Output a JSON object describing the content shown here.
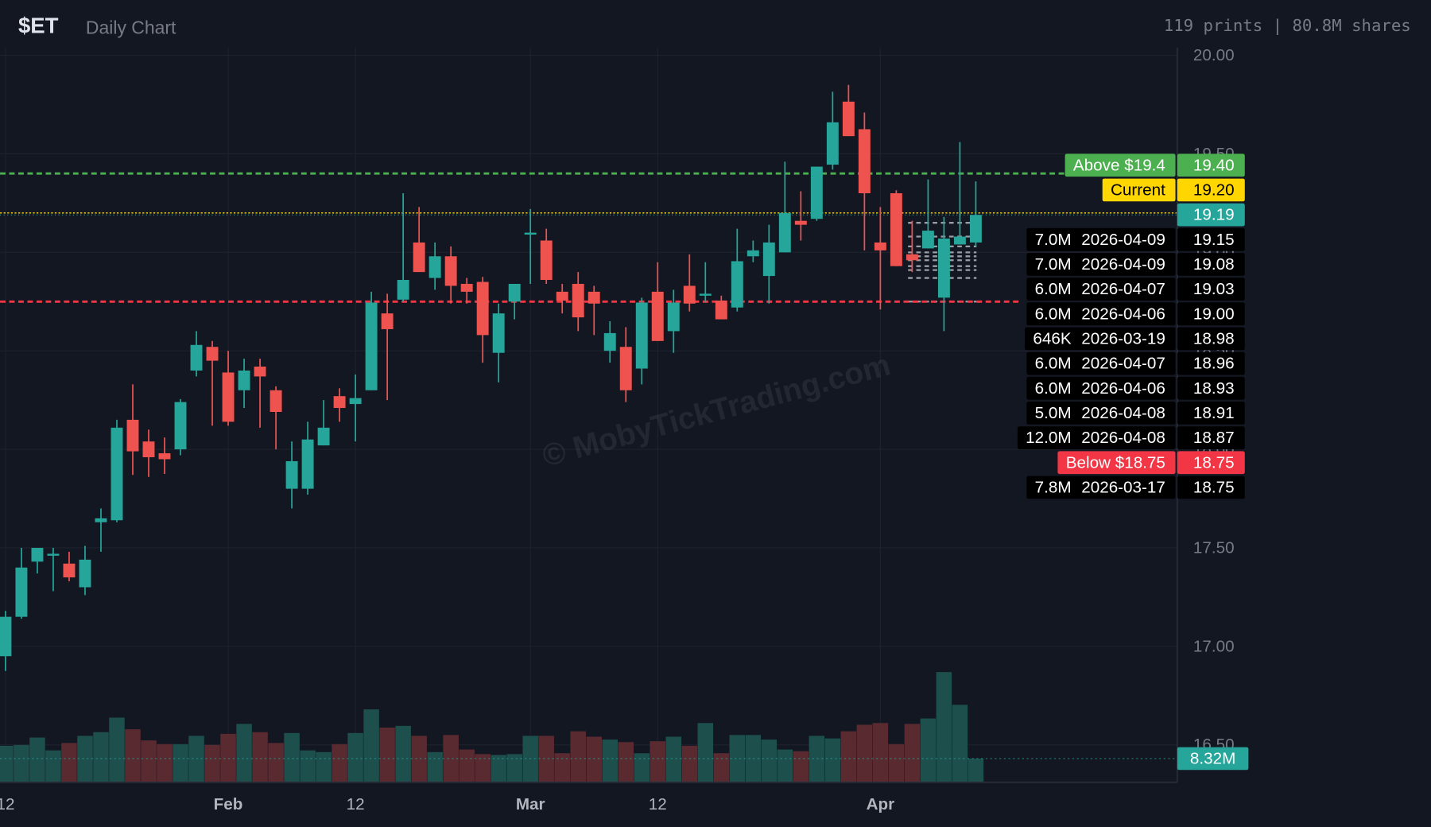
{
  "header": {
    "symbol": "$ET",
    "subtitle": "Daily Chart",
    "stats": "119 prints | 80.8M shares"
  },
  "chart_data": {
    "type": "candlestick",
    "watermark": "© MobyTickTrading.com",
    "categories": [
      "12",
      null,
      null,
      null,
      null,
      null,
      null,
      null,
      null,
      null,
      null,
      null,
      null,
      null,
      "Feb",
      null,
      null,
      null,
      null,
      null,
      null,
      null,
      "12",
      null,
      null,
      null,
      null,
      null,
      null,
      null,
      null,
      null,
      null,
      "Mar",
      null,
      null,
      null,
      null,
      null,
      null,
      null,
      "12",
      null,
      null,
      null,
      null,
      null,
      null,
      null,
      null,
      null,
      null,
      null,
      null,
      null,
      "Apr",
      null,
      null,
      null,
      null,
      null,
      null
    ],
    "open": [
      16.95,
      17.15,
      17.43,
      17.46,
      17.42,
      17.3,
      17.63,
      17.64,
      18.15,
      18.04,
      17.98,
      18.0,
      18.4,
      18.52,
      18.39,
      18.3,
      18.42,
      18.3,
      17.8,
      17.8,
      18.02,
      18.27,
      18.23,
      18.3,
      18.69,
      18.76,
      19.05,
      18.87,
      18.98,
      18.84,
      18.85,
      18.49,
      18.75,
      19.09,
      19.06,
      18.8,
      18.84,
      18.8,
      18.5,
      18.52,
      18.41,
      18.8,
      18.6,
      18.83,
      18.78,
      18.755,
      18.72,
      18.98,
      18.88,
      19.0,
      19.16,
      19.17,
      19.445,
      19.765,
      19.625,
      19.05,
      19.3,
      18.99,
      19.02,
      18.77,
      19.04,
      19.05
    ],
    "high": [
      17.18,
      17.5,
      17.5,
      17.5,
      17.48,
      17.51,
      17.7,
      18.15,
      18.33,
      18.1,
      18.06,
      18.255,
      18.6,
      18.55,
      18.5,
      18.46,
      18.46,
      18.32,
      18.04,
      18.14,
      18.25,
      18.31,
      18.38,
      18.8,
      18.79,
      19.3,
      19.23,
      19.05,
      19.03,
      18.87,
      18.875,
      18.74,
      18.84,
      19.22,
      19.12,
      18.84,
      18.9,
      18.83,
      18.65,
      18.62,
      18.77,
      18.95,
      18.81,
      18.99,
      18.95,
      18.78,
      19.12,
      19.06,
      19.14,
      19.46,
      19.31,
      19.435,
      19.815,
      19.85,
      19.71,
      19.23,
      19.315,
      19.16,
      19.37,
      19.18,
      19.56,
      19.36
    ],
    "low": [
      16.875,
      17.14,
      17.37,
      17.28,
      17.33,
      17.26,
      17.48,
      17.63,
      17.87,
      17.86,
      17.875,
      17.97,
      18.37,
      18.12,
      18.12,
      18.21,
      18.11,
      18.0,
      17.7,
      17.77,
      18.02,
      18.14,
      18.04,
      18.3,
      18.25,
      18.75,
      18.9,
      18.81,
      18.74,
      18.74,
      18.44,
      18.34,
      18.66,
      18.84,
      18.84,
      18.69,
      18.6,
      18.58,
      18.44,
      18.24,
      18.33,
      18.55,
      18.49,
      18.7,
      18.745,
      18.66,
      18.7,
      18.95,
      18.74,
      19.0,
      19.06,
      19.16,
      19.42,
      19.59,
      19.01,
      18.71,
      18.93,
      18.9,
      19.02,
      18.6,
      19.04,
      19.03
    ],
    "close": [
      17.15,
      17.4,
      17.5,
      17.47,
      17.35,
      17.44,
      17.65,
      18.11,
      17.99,
      17.96,
      17.95,
      18.24,
      18.53,
      18.45,
      18.14,
      18.4,
      18.37,
      18.19,
      17.94,
      18.05,
      18.11,
      18.21,
      18.26,
      18.745,
      18.61,
      18.86,
      18.9,
      18.98,
      18.83,
      18.8,
      18.58,
      18.69,
      18.84,
      19.1,
      18.86,
      18.755,
      18.67,
      18.74,
      18.59,
      18.3,
      18.745,
      18.55,
      18.745,
      18.74,
      18.79,
      18.66,
      18.955,
      19.01,
      19.05,
      19.2,
      19.14,
      19.435,
      19.66,
      19.59,
      19.3,
      19.01,
      18.93,
      18.96,
      19.11,
      19.07,
      19.08,
      19.19
    ],
    "volume": [
      12.8,
      13.1,
      15.7,
      11.2,
      13.8,
      16.3,
      17.6,
      22.7,
      18.6,
      14.7,
      13.4,
      13.4,
      16.3,
      13.1,
      17.0,
      20.5,
      17.6,
      13.8,
      17.3,
      11.2,
      10.6,
      13.4,
      17.3,
      25.6,
      19.2,
      19.8,
      16.3,
      10.6,
      16.6,
      11.5,
      9.9,
      9.6,
      9.9,
      16.3,
      16.3,
      10.2,
      17.9,
      16.0,
      15.0,
      14.1,
      10.2,
      14.4,
      16.0,
      12.8,
      20.8,
      10.2,
      16.6,
      16.6,
      15.0,
      11.5,
      10.9,
      16.3,
      15.4,
      17.9,
      20.2,
      20.8,
      13.4,
      20.5,
      22.4,
      38.7,
      27.2,
      8.32
    ],
    "last_volume_label": "8.32M",
    "up_color": "#26a69a",
    "down_color": "#ef5350",
    "volume_up_color": "#1d4f4d",
    "volume_down_color": "#5a2a31",
    "ylim": [
      16.31,
      20.04
    ],
    "volume_ylim": [
      0,
      258
    ],
    "yticks": [
      {
        "value": 16.5,
        "label": "16.50"
      },
      {
        "value": 17,
        "label": "17.00"
      },
      {
        "value": 17.5,
        "label": "17.50"
      },
      {
        "value": 18,
        "label": "18.00"
      },
      {
        "value": 18.5,
        "label": "18.50"
      },
      {
        "value": 19,
        "label": "19.00"
      },
      {
        "value": 19.5,
        "label": "19.50"
      },
      {
        "value": 20,
        "label": "20.00"
      }
    ],
    "grid": true,
    "last_price": 19.19,
    "last_price_color": "#26a69a",
    "levels": [
      {
        "label": "Above $19.4",
        "value": 19.4,
        "value_label": "19.40",
        "color": "#4caf50"
      },
      {
        "label": "Current",
        "value": 19.2,
        "value_label": "19.20",
        "color": "#ffd600"
      },
      {
        "label": "Below $18.75",
        "value": 18.75,
        "value_label": "18.75",
        "color": "#f23645"
      }
    ],
    "prints": [
      {
        "size": "7.0M",
        "date": "2026-04-09",
        "price": 19.15,
        "price_label": "19.15"
      },
      {
        "size": "7.0M",
        "date": "2026-04-09",
        "price": 19.08,
        "price_label": "19.08"
      },
      {
        "size": "6.0M",
        "date": "2026-04-07",
        "price": 19.03,
        "price_label": "19.03"
      },
      {
        "size": "6.0M",
        "date": "2026-04-06",
        "price": 19.0,
        "price_label": "19.00"
      },
      {
        "size": "646K",
        "date": "2026-03-19",
        "price": 18.98,
        "price_label": "18.98"
      },
      {
        "size": "6.0M",
        "date": "2026-04-07",
        "price": 18.96,
        "price_label": "18.96"
      },
      {
        "size": "6.0M",
        "date": "2026-04-06",
        "price": 18.93,
        "price_label": "18.93"
      },
      {
        "size": "5.0M",
        "date": "2026-04-08",
        "price": 18.91,
        "price_label": "18.91"
      },
      {
        "size": "12.0M",
        "date": "2026-04-08",
        "price": 18.87,
        "price_label": "18.87"
      },
      {
        "size": "7.8M",
        "date": "2026-03-17",
        "price": 18.75,
        "price_label": "18.75"
      }
    ]
  }
}
